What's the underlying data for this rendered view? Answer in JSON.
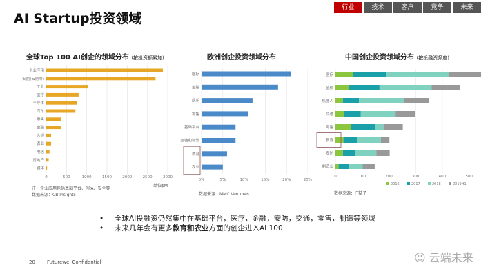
{
  "title": "AI Startup投资领域",
  "nav": [
    {
      "label": "行业",
      "active": true
    },
    {
      "label": "技术"
    },
    {
      "label": "客户"
    },
    {
      "label": "竞争"
    },
    {
      "label": "未来"
    }
  ],
  "chart_data": [
    {
      "type": "bar",
      "orientation": "horizontal",
      "title": "全球Top 100 AI创企的领域分布",
      "subtitle": "(按投资额累加)",
      "categories": [
        "企业应用",
        "安防(云防等)",
        "工业",
        "医疗",
        "半导体",
        "汽车",
        "零售",
        "金融",
        "合规",
        "农业",
        "电信",
        "房地产",
        "媒体"
      ],
      "values": [
        2880,
        2700,
        1040,
        800,
        760,
        720,
        370,
        370,
        120,
        120,
        80,
        60,
        20
      ],
      "xlim": [
        0,
        3000
      ],
      "xticks": [
        "0",
        "500",
        "1000",
        "1500",
        "2000",
        "2500",
        "3000"
      ],
      "unit": "单位$M",
      "color": "#e8a626",
      "grid": true,
      "notes": [
        "注：企业应用包括基础平台、RPA、安全等",
        "数据来源：CB Insights"
      ]
    },
    {
      "type": "bar",
      "orientation": "horizontal",
      "title": "欧洲创企投资领域分布",
      "categories": [
        "医疗",
        "金融",
        "娱乐",
        "零售",
        "基础平台",
        "运输和物流",
        "教育",
        "农业"
      ],
      "values": [
        21,
        18,
        12,
        11,
        8,
        8,
        6,
        5
      ],
      "xlim": [
        0,
        25
      ],
      "xticks": [
        "0%",
        "5%",
        "10%",
        "15%",
        "20%",
        "25%"
      ],
      "color": "#4a8ac8",
      "grid": true,
      "highlight": [
        "教育",
        "农业"
      ],
      "notes": [
        "数据来源：MMC Ventures"
      ]
    },
    {
      "type": "bar",
      "orientation": "horizontal",
      "stacked": true,
      "title": "中国创企投资领域分布",
      "subtitle": "(按投融资频度)",
      "categories": [
        "医疗",
        "金融",
        "机器人",
        "交通",
        "零售",
        "教育",
        "安防",
        "制造业"
      ],
      "series": [
        {
          "name": "2016",
          "color": "#8cc63f",
          "values": [
            65,
            50,
            28,
            33,
            58,
            30,
            28,
            12
          ]
        },
        {
          "name": "2017",
          "color": "#1aa0a8",
          "values": [
            125,
            115,
            60,
            62,
            90,
            50,
            45,
            40
          ]
        },
        {
          "name": "2018",
          "color": "#7fd1c0",
          "values": [
            235,
            195,
            167,
            130,
            32,
            90,
            80,
            50
          ]
        },
        {
          "name": "2019H1",
          "color": "#999999",
          "values": [
            120,
            105,
            95,
            72,
            72,
            32,
            50,
            45
          ]
        }
      ],
      "xlim": [
        0,
        550
      ],
      "xticks": [
        "0",
        "100",
        "200",
        "300",
        "400",
        "500"
      ],
      "legend": "bottom",
      "grid": true,
      "highlight": [
        "教育"
      ],
      "notes": [
        "数据来源：IT桔子"
      ]
    }
  ],
  "bullets": [
    {
      "text": "全球AI投融资仍然集中在基础平台，医疗，金融，安防，交通，零售，制造等领域"
    },
    {
      "pre": "未来几年会有更多",
      "bold": "教育和农业",
      "post": "方面的创企进入AI  100"
    }
  ],
  "footer": {
    "page": "20",
    "confidential": "Futurewei  Confidential"
  },
  "watermark": "云端未来"
}
